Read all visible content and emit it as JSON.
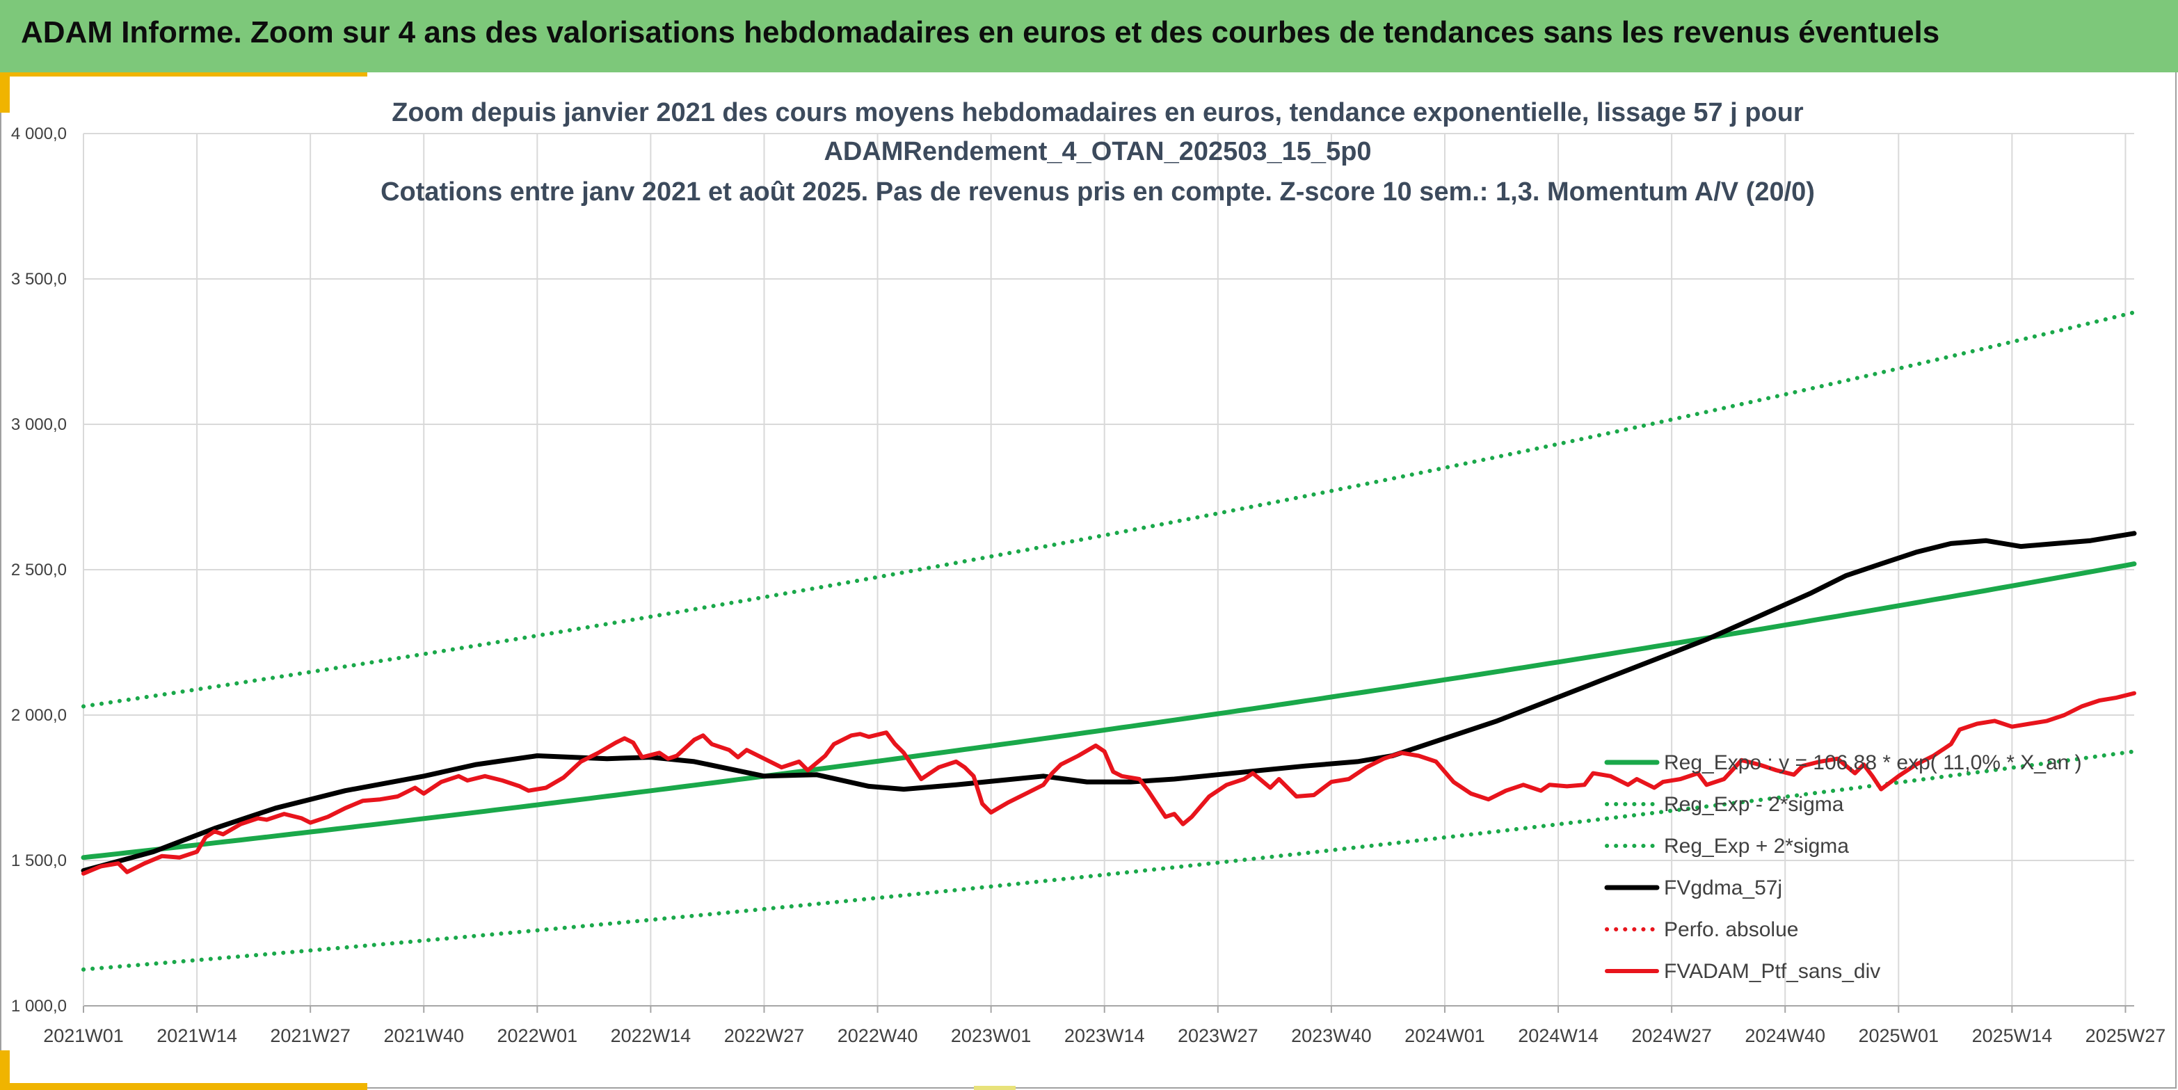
{
  "header": {
    "title": "ADAM Informe. Zoom sur 4 ans des valorisations hebdomadaires en euros et des courbes de tendances sans les revenus éventuels"
  },
  "colors": {
    "header_bg": "#7dc87a",
    "accent": "#f0b400",
    "trend_green": "#1aa84a",
    "smooth_black": "#000000",
    "portfolio_red": "#e8141c",
    "perf_red": "#e8141c"
  },
  "chart_data": {
    "type": "line",
    "title": [
      "Zoom depuis janvier 2021 des cours moyens hebdomadaires en euros, tendance exponentielle, lissage 57 j pour",
      "ADAMRendement_4_OTAN_202503_15_5p0",
      "Cotations entre janv 2021 et août 2025. Pas de revenus pris en compte. Z-score 10 sem.: 1,3. Momentum A/V (20/0)"
    ],
    "xlabel": "",
    "ylabel": "",
    "ylim": [
      1000,
      4000
    ],
    "x_range_weeks": [
      0,
      235
    ],
    "x_ticks": [
      {
        "label": "2021W01",
        "week": 0
      },
      {
        "label": "2021W14",
        "week": 13
      },
      {
        "label": "2021W27",
        "week": 26
      },
      {
        "label": "2021W40",
        "week": 39
      },
      {
        "label": "2022W01",
        "week": 52
      },
      {
        "label": "2022W14",
        "week": 65
      },
      {
        "label": "2022W27",
        "week": 78
      },
      {
        "label": "2022W40",
        "week": 91
      },
      {
        "label": "2023W01",
        "week": 104
      },
      {
        "label": "2023W14",
        "week": 117
      },
      {
        "label": "2023W27",
        "week": 130
      },
      {
        "label": "2023W40",
        "week": 143
      },
      {
        "label": "2024W01",
        "week": 156
      },
      {
        "label": "2024W14",
        "week": 169
      },
      {
        "label": "2024W27",
        "week": 182
      },
      {
        "label": "2024W40",
        "week": 195
      },
      {
        "label": "2025W01",
        "week": 208
      },
      {
        "label": "2025W14",
        "week": 221
      },
      {
        "label": "2025W27",
        "week": 234
      }
    ],
    "y_ticks": [
      {
        "label": "1 000,0",
        "value": 1000
      },
      {
        "label": "1 500,0",
        "value": 1500
      },
      {
        "label": "2 000,0",
        "value": 2000
      },
      {
        "label": "2 500,0",
        "value": 2500
      },
      {
        "label": "3 000,0",
        "value": 3000
      },
      {
        "label": "3 500,0",
        "value": 3500
      },
      {
        "label": "4 000,0",
        "value": 4000
      }
    ],
    "grid": true,
    "legend_position": "bottom-right",
    "series": [
      {
        "name": "Reg_Expo : y = 106,88 * exp( 11,0% * X_an )",
        "style": "solid-green",
        "points": [
          [
            0,
            1510
          ],
          [
            78,
            1795
          ],
          [
            156,
            2100
          ],
          [
            182,
            2220
          ],
          [
            235,
            2520
          ]
        ]
      },
      {
        "name": "Reg_Exp - 2*sigma",
        "style": "dotted-green",
        "points": [
          [
            0,
            1125
          ],
          [
            78,
            1330
          ],
          [
            156,
            1565
          ],
          [
            235,
            1875
          ]
        ]
      },
      {
        "name": "Reg_Exp + 2*sigma",
        "style": "dotted-green",
        "points": [
          [
            0,
            2030
          ],
          [
            78,
            2390
          ],
          [
            156,
            2800
          ],
          [
            235,
            3385
          ]
        ]
      },
      {
        "name": "FVgdma_57j",
        "style": "solid-black",
        "points": [
          [
            0,
            1465
          ],
          [
            8,
            1530
          ],
          [
            15,
            1610
          ],
          [
            22,
            1680
          ],
          [
            30,
            1740
          ],
          [
            39,
            1790
          ],
          [
            45,
            1830
          ],
          [
            52,
            1860
          ],
          [
            60,
            1850
          ],
          [
            65,
            1855
          ],
          [
            70,
            1840
          ],
          [
            78,
            1790
          ],
          [
            84,
            1795
          ],
          [
            90,
            1755
          ],
          [
            94,
            1745
          ],
          [
            100,
            1760
          ],
          [
            105,
            1775
          ],
          [
            110,
            1790
          ],
          [
            115,
            1770
          ],
          [
            120,
            1770
          ],
          [
            125,
            1780
          ],
          [
            130,
            1795
          ],
          [
            135,
            1810
          ],
          [
            140,
            1825
          ],
          [
            146,
            1840
          ],
          [
            150,
            1860
          ],
          [
            156,
            1920
          ],
          [
            162,
            1980
          ],
          [
            168,
            2050
          ],
          [
            174,
            2120
          ],
          [
            180,
            2190
          ],
          [
            186,
            2260
          ],
          [
            192,
            2340
          ],
          [
            198,
            2420
          ],
          [
            202,
            2480
          ],
          [
            206,
            2520
          ],
          [
            210,
            2560
          ],
          [
            214,
            2590
          ],
          [
            218,
            2600
          ],
          [
            222,
            2580
          ],
          [
            226,
            2590
          ],
          [
            230,
            2600
          ],
          [
            235,
            2625
          ]
        ]
      },
      {
        "name": "Perfo. absolue",
        "style": "dotted-red",
        "points": []
      },
      {
        "name": "FVADAM_Ptf_sans_div",
        "style": "solid-red",
        "points": [
          [
            0,
            1455
          ],
          [
            2,
            1480
          ],
          [
            4,
            1490
          ],
          [
            5,
            1460
          ],
          [
            7,
            1490
          ],
          [
            9,
            1515
          ],
          [
            11,
            1510
          ],
          [
            13,
            1530
          ],
          [
            14,
            1580
          ],
          [
            15,
            1600
          ],
          [
            16,
            1590
          ],
          [
            18,
            1625
          ],
          [
            20,
            1645
          ],
          [
            21,
            1640
          ],
          [
            23,
            1660
          ],
          [
            25,
            1645
          ],
          [
            26,
            1630
          ],
          [
            28,
            1650
          ],
          [
            30,
            1680
          ],
          [
            32,
            1705
          ],
          [
            34,
            1710
          ],
          [
            36,
            1720
          ],
          [
            38,
            1750
          ],
          [
            39,
            1730
          ],
          [
            41,
            1770
          ],
          [
            43,
            1790
          ],
          [
            44,
            1775
          ],
          [
            46,
            1790
          ],
          [
            48,
            1775
          ],
          [
            50,
            1755
          ],
          [
            51,
            1740
          ],
          [
            53,
            1750
          ],
          [
            55,
            1785
          ],
          [
            57,
            1840
          ],
          [
            59,
            1870
          ],
          [
            61,
            1905
          ],
          [
            62,
            1920
          ],
          [
            63,
            1905
          ],
          [
            64,
            1855
          ],
          [
            66,
            1870
          ],
          [
            67,
            1850
          ],
          [
            68,
            1860
          ],
          [
            70,
            1915
          ],
          [
            71,
            1930
          ],
          [
            72,
            1900
          ],
          [
            74,
            1880
          ],
          [
            75,
            1855
          ],
          [
            76,
            1880
          ],
          [
            78,
            1850
          ],
          [
            80,
            1820
          ],
          [
            82,
            1840
          ],
          [
            83,
            1810
          ],
          [
            85,
            1860
          ],
          [
            86,
            1900
          ],
          [
            88,
            1930
          ],
          [
            89,
            1935
          ],
          [
            90,
            1925
          ],
          [
            92,
            1940
          ],
          [
            93,
            1900
          ],
          [
            94,
            1870
          ],
          [
            96,
            1780
          ],
          [
            98,
            1820
          ],
          [
            100,
            1840
          ],
          [
            101,
            1820
          ],
          [
            102,
            1790
          ],
          [
            103,
            1695
          ],
          [
            104,
            1665
          ],
          [
            106,
            1700
          ],
          [
            108,
            1730
          ],
          [
            110,
            1760
          ],
          [
            111,
            1800
          ],
          [
            112,
            1830
          ],
          [
            114,
            1860
          ],
          [
            116,
            1895
          ],
          [
            117,
            1875
          ],
          [
            118,
            1805
          ],
          [
            119,
            1790
          ],
          [
            121,
            1780
          ],
          [
            122,
            1740
          ],
          [
            124,
            1650
          ],
          [
            125,
            1660
          ],
          [
            126,
            1625
          ],
          [
            127,
            1650
          ],
          [
            129,
            1720
          ],
          [
            131,
            1760
          ],
          [
            133,
            1780
          ],
          [
            134,
            1800
          ],
          [
            136,
            1750
          ],
          [
            137,
            1780
          ],
          [
            139,
            1720
          ],
          [
            141,
            1725
          ],
          [
            143,
            1770
          ],
          [
            145,
            1780
          ],
          [
            147,
            1820
          ],
          [
            149,
            1850
          ],
          [
            151,
            1870
          ],
          [
            153,
            1860
          ],
          [
            155,
            1840
          ],
          [
            157,
            1770
          ],
          [
            159,
            1730
          ],
          [
            161,
            1710
          ],
          [
            163,
            1740
          ],
          [
            165,
            1760
          ],
          [
            167,
            1740
          ],
          [
            168,
            1760
          ],
          [
            170,
            1755
          ],
          [
            172,
            1760
          ],
          [
            173,
            1800
          ],
          [
            175,
            1790
          ],
          [
            177,
            1760
          ],
          [
            178,
            1780
          ],
          [
            180,
            1750
          ],
          [
            181,
            1770
          ],
          [
            183,
            1780
          ],
          [
            185,
            1800
          ],
          [
            186,
            1760
          ],
          [
            188,
            1780
          ],
          [
            190,
            1845
          ],
          [
            192,
            1830
          ],
          [
            194,
            1810
          ],
          [
            196,
            1795
          ],
          [
            197,
            1825
          ],
          [
            199,
            1840
          ],
          [
            201,
            1850
          ],
          [
            203,
            1800
          ],
          [
            204,
            1830
          ],
          [
            205,
            1790
          ],
          [
            206,
            1745
          ],
          [
            208,
            1790
          ],
          [
            210,
            1830
          ],
          [
            212,
            1860
          ],
          [
            214,
            1900
          ],
          [
            215,
            1950
          ],
          [
            217,
            1970
          ],
          [
            219,
            1980
          ],
          [
            221,
            1960
          ],
          [
            223,
            1970
          ],
          [
            225,
            1980
          ],
          [
            227,
            2000
          ],
          [
            229,
            2030
          ],
          [
            231,
            2050
          ],
          [
            233,
            2060
          ],
          [
            235,
            2075
          ]
        ]
      }
    ]
  }
}
